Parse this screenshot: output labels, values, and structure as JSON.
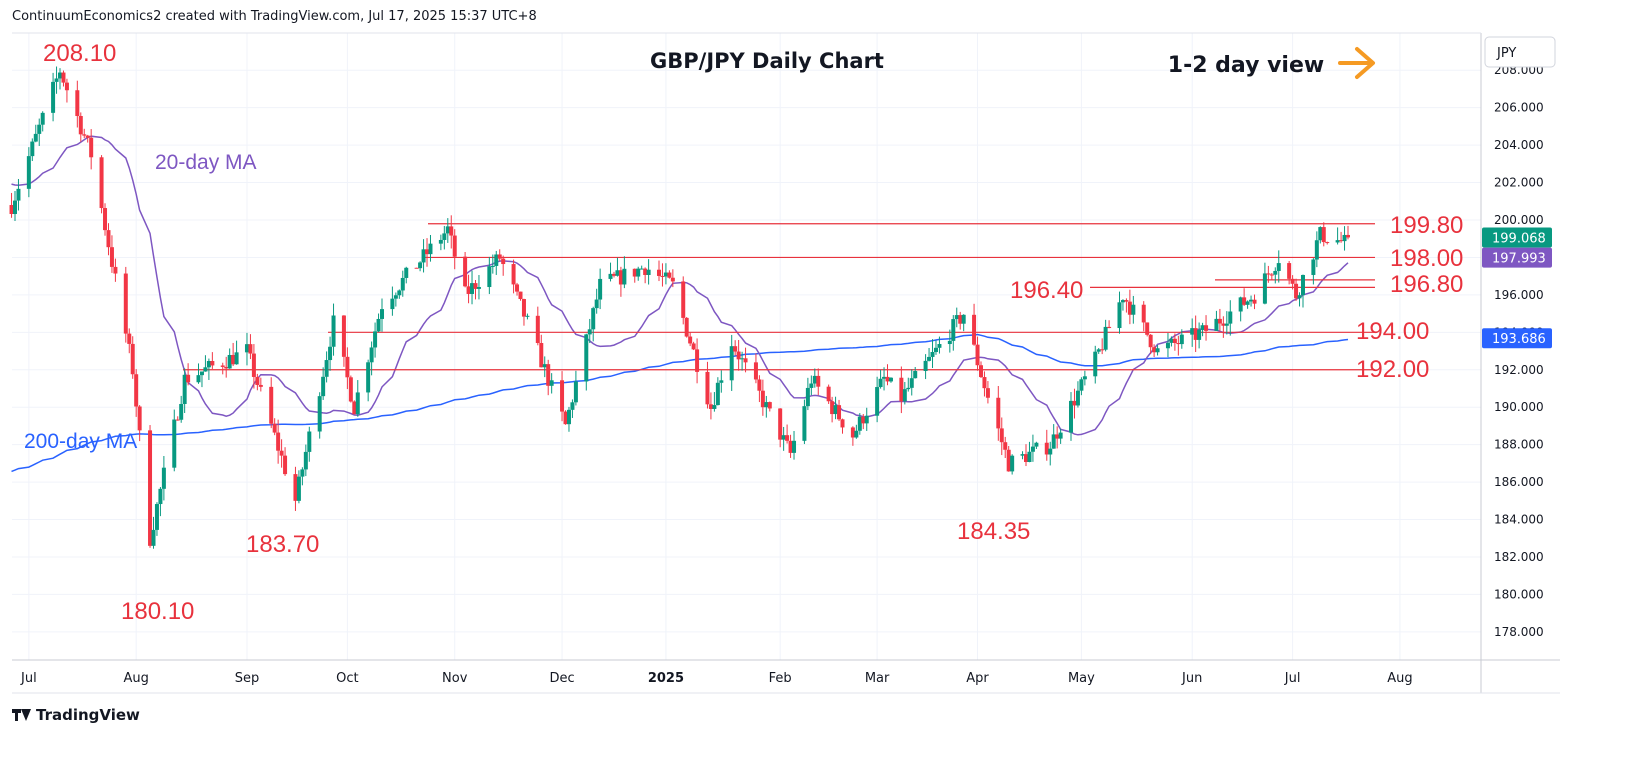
{
  "header": {
    "created_by": "ContinuumEconomics2 created with TradingView.com, Jul 17, 2025 15:37 UTC+8"
  },
  "branding": {
    "logo_text": "TradingView"
  },
  "chart_data": {
    "type": "candlestick",
    "title": "GBP/JPY Daily Chart",
    "currency_label": "JPY",
    "view_annotation": "1-2 day view",
    "arrow_color": "#f59a23",
    "ylim": [
      176.0,
      209.5
    ],
    "y_ticks": [
      "208.000",
      "206.000",
      "204.000",
      "202.000",
      "200.000",
      "198.000",
      "196.000",
      "194.000",
      "192.000",
      "190.000",
      "188.000",
      "186.000",
      "184.000",
      "182.000",
      "180.000",
      "178.000"
    ],
    "x_ticks": [
      "Jul",
      "Aug",
      "Sep",
      "Oct",
      "Nov",
      "Dec",
      "2025",
      "Feb",
      "Mar",
      "Apr",
      "May",
      "Jun",
      "Jul",
      "Aug"
    ],
    "price_badges": [
      {
        "label": "199.068",
        "value": 199.068,
        "color": "#089981"
      },
      {
        "label": "197.993",
        "value": 197.993,
        "color": "#7e57c2"
      },
      {
        "label": "193.686",
        "value": 193.686,
        "color": "#2962ff"
      }
    ],
    "horizontal_levels": [
      {
        "label": "199.80",
        "value": 199.8
      },
      {
        "label": "198.00",
        "value": 198.0
      },
      {
        "label": "196.80",
        "value": 196.8
      },
      {
        "label": "196.40",
        "value": 196.4
      },
      {
        "label": "194.00",
        "value": 194.0
      },
      {
        "label": "192.00",
        "value": 192.0
      }
    ],
    "annotations": [
      {
        "label": "208.10",
        "value": 208.1
      },
      {
        "label": "180.10",
        "value": 180.1
      },
      {
        "label": "183.70",
        "value": 183.7
      },
      {
        "label": "184.35",
        "value": 184.35
      }
    ],
    "series": [
      {
        "name": "20-day MA",
        "color": "#7e57c2"
      },
      {
        "name": "200-day MA",
        "color": "#2962ff"
      }
    ],
    "up_color": "#089981",
    "down_color": "#f23645",
    "anchors": [
      {
        "date": "2024-06-26",
        "close": 200.8
      },
      {
        "date": "2024-07-10",
        "close": 208.0
      },
      {
        "date": "2024-07-19",
        "close": 203.5
      },
      {
        "date": "2024-07-31",
        "close": 192.0
      },
      {
        "date": "2024-08-05",
        "close": 183.0
      },
      {
        "date": "2024-08-15",
        "close": 191.5
      },
      {
        "date": "2024-09-02",
        "close": 193.0
      },
      {
        "date": "2024-09-16",
        "close": 185.0
      },
      {
        "date": "2024-09-27",
        "close": 194.5
      },
      {
        "date": "2024-10-03",
        "close": 190.0
      },
      {
        "date": "2024-10-11",
        "close": 195.5
      },
      {
        "date": "2024-10-30",
        "close": 199.5
      },
      {
        "date": "2024-11-04",
        "close": 196.0
      },
      {
        "date": "2024-11-14",
        "close": 198.0
      },
      {
        "date": "2024-11-22",
        "close": 194.5
      },
      {
        "date": "2024-12-03",
        "close": 189.0
      },
      {
        "date": "2024-12-13",
        "close": 196.5
      },
      {
        "date": "2024-12-26",
        "close": 197.5
      },
      {
        "date": "2025-01-03",
        "close": 196.5
      },
      {
        "date": "2025-01-14",
        "close": 190.0
      },
      {
        "date": "2025-01-20",
        "close": 193.5
      },
      {
        "date": "2025-02-06",
        "close": 187.5
      },
      {
        "date": "2025-02-12",
        "close": 191.5
      },
      {
        "date": "2025-02-24",
        "close": 188.5
      },
      {
        "date": "2025-03-05",
        "close": 191.5
      },
      {
        "date": "2025-03-10",
        "close": 190.5
      },
      {
        "date": "2025-03-28",
        "close": 195.0
      },
      {
        "date": "2025-04-04",
        "close": 190.5
      },
      {
        "date": "2025-04-10",
        "close": 187.0
      },
      {
        "date": "2025-04-22",
        "close": 188.0
      },
      {
        "date": "2025-05-05",
        "close": 192.5
      },
      {
        "date": "2025-05-13",
        "close": 196.0
      },
      {
        "date": "2025-05-23",
        "close": 193.0
      },
      {
        "date": "2025-06-05",
        "close": 194.0
      },
      {
        "date": "2025-06-20",
        "close": 196.0
      },
      {
        "date": "2025-06-27",
        "close": 198.0
      },
      {
        "date": "2025-07-02",
        "close": 196.0
      },
      {
        "date": "2025-07-09",
        "close": 199.2
      },
      {
        "date": "2025-07-16",
        "close": 198.8
      },
      {
        "date": "2025-07-17",
        "close": 199.068
      }
    ]
  }
}
